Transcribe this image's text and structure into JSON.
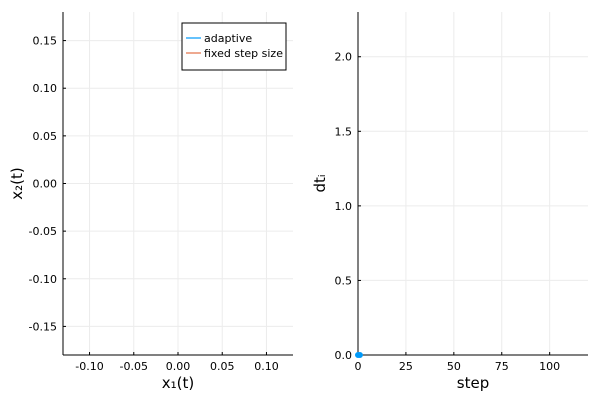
{
  "chart_data": [
    {
      "type": "line",
      "xlabel": "x₁(t)",
      "ylabel": "x₂(t)",
      "xlim": [
        -0.13,
        0.13
      ],
      "ylim": [
        -0.18,
        0.18
      ],
      "xticks": [
        -0.1,
        -0.05,
        0.0,
        0.05,
        0.1
      ],
      "xtick_labels": [
        "-0.10",
        "-0.05",
        "0.00",
        "0.05",
        "0.10"
      ],
      "yticks": [
        0.15,
        0.1,
        0.05,
        0.0,
        -0.05,
        -0.1,
        -0.15
      ],
      "ytick_labels": [
        "0.15",
        "0.10",
        "0.05",
        "0.00",
        "-0.05",
        "-0.10",
        "-0.15"
      ],
      "grid": true,
      "legend": {
        "position": "top-right",
        "entries": [
          {
            "label": "adaptive",
            "color": "#009af9"
          },
          {
            "label": "fixed step size",
            "color": "#e26f46"
          }
        ]
      },
      "series": [
        {
          "name": "adaptive",
          "color": "#009af9",
          "points": []
        },
        {
          "name": "fixed step size",
          "color": "#e26f46",
          "points": []
        }
      ]
    },
    {
      "type": "scatter",
      "xlabel": "step",
      "ylabel": "dtᵢ",
      "xlim": [
        0,
        120
      ],
      "ylim": [
        0,
        2.3
      ],
      "xticks": [
        0,
        25,
        50,
        75,
        100
      ],
      "xtick_labels": [
        "0",
        "25",
        "50",
        "75",
        "100"
      ],
      "yticks": [
        2.0,
        1.5,
        1.0,
        0.5,
        0.0
      ],
      "ytick_labels": [
        "2.0",
        "1.5",
        "1.0",
        "0.5",
        "0.0"
      ],
      "grid": true,
      "series": [
        {
          "color": "#009af9",
          "points": [
            [
              0,
              0
            ],
            [
              1,
              0
            ]
          ]
        }
      ]
    }
  ]
}
